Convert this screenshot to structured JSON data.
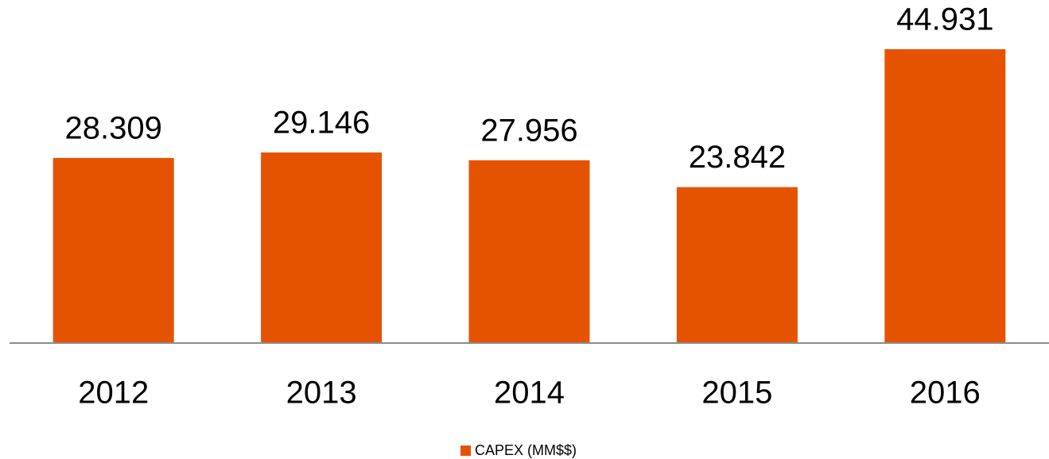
{
  "chart_data": {
    "type": "bar",
    "categories": [
      "2012",
      "2013",
      "2014",
      "2015",
      "2016"
    ],
    "series": [
      {
        "name": "CAPEX (MM$$)",
        "color": "#e65300",
        "values": [
          28.309,
          29.146,
          27.956,
          23.842,
          44.931
        ]
      }
    ]
  }
}
